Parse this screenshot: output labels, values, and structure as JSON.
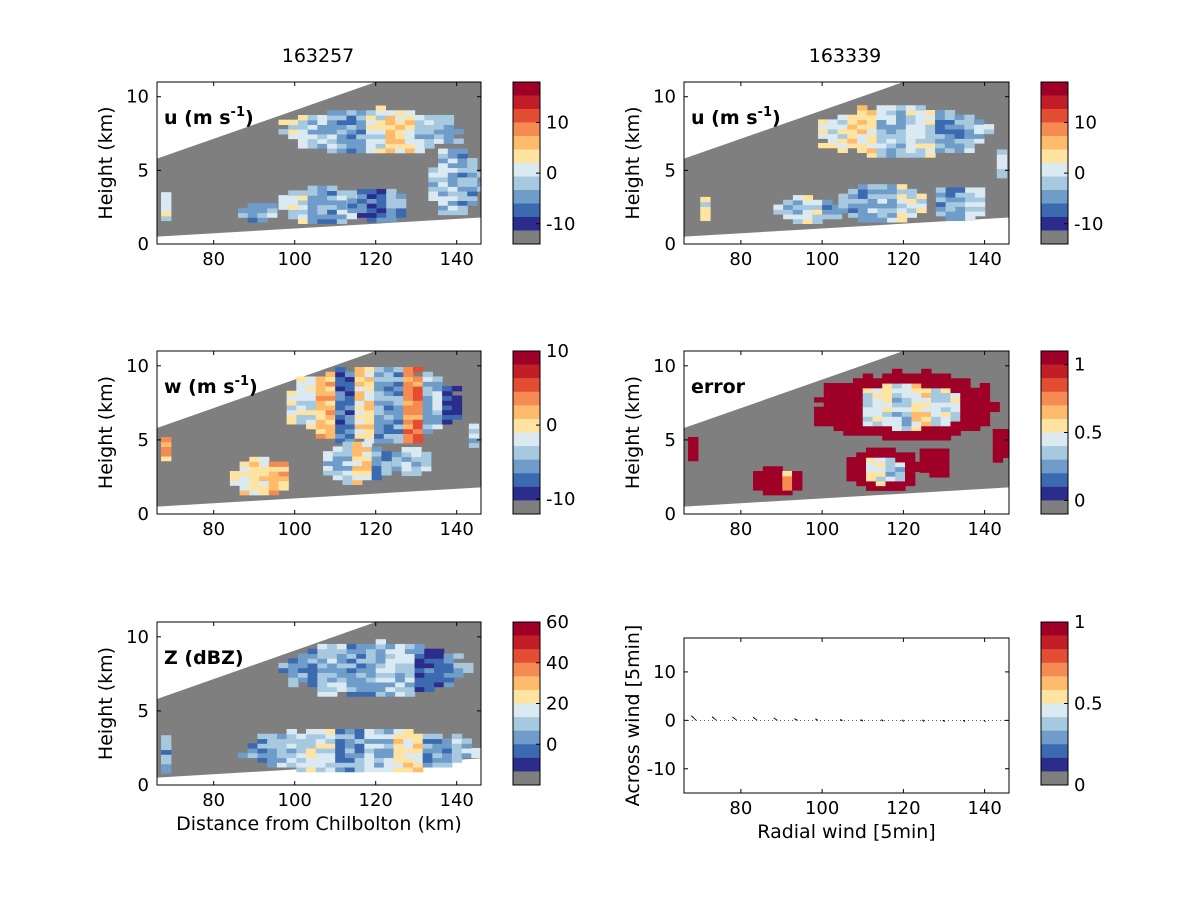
{
  "figure": {
    "column_titles": [
      "163257",
      "163339"
    ]
  },
  "chart_data": [
    {
      "type": "heatmap",
      "id": "u_left",
      "label": "u (m s",
      "label_sup": "-1",
      "label_tail": ")",
      "ylabel": "Height (km)",
      "xlabel": "",
      "xlim": [
        66,
        146
      ],
      "ylim": [
        0,
        11
      ],
      "xticks": [
        80,
        100,
        120,
        140
      ],
      "yticks": [
        0,
        5,
        10
      ],
      "colorbar": {
        "ticks": [
          {
            "v": 10,
            "label": "10"
          },
          {
            "v": 0,
            "label": "0"
          },
          {
            "v": -10,
            "label": "-10"
          }
        ],
        "range": [
          -14,
          18
        ]
      },
      "cloud_regions": [
        {
          "x": [
            96,
            141
          ],
          "y": [
            6.2,
            9.2
          ],
          "field": [
            4,
            3,
            2,
            4,
            5,
            3,
            2
          ]
        },
        {
          "x": [
            67,
            69
          ],
          "y": [
            1.6,
            3.4
          ],
          "field": [
            4
          ]
        },
        {
          "x": [
            86,
            96
          ],
          "y": [
            1.5,
            2.9
          ],
          "field": [
            2,
            3
          ]
        },
        {
          "x": [
            96,
            117
          ],
          "y": [
            1.4,
            4.0
          ],
          "field": [
            4,
            2,
            3
          ]
        },
        {
          "x": [
            113,
            128
          ],
          "y": [
            1.5,
            3.8
          ],
          "field": [
            1,
            2
          ]
        },
        {
          "x": [
            133,
            146
          ],
          "y": [
            2.0,
            6.5
          ],
          "field": [
            3,
            2
          ]
        }
      ]
    },
    {
      "type": "heatmap",
      "id": "u_right",
      "label": "u (m s",
      "label_sup": "-1",
      "label_tail": ")",
      "ylabel": "Height (km)",
      "xlabel": "",
      "xlim": [
        66,
        146
      ],
      "ylim": [
        0,
        11
      ],
      "xticks": [
        80,
        100,
        120,
        140
      ],
      "yticks": [
        0,
        5,
        10
      ],
      "colorbar": {
        "ticks": [
          {
            "v": 10,
            "label": "10"
          },
          {
            "v": 0,
            "label": "0"
          },
          {
            "v": -10,
            "label": "-10"
          }
        ],
        "range": [
          -14,
          18
        ]
      },
      "cloud_regions": [
        {
          "x": [
            99,
            141
          ],
          "y": [
            5.9,
            9.4
          ],
          "field": [
            4,
            5,
            3,
            4,
            2,
            3
          ]
        },
        {
          "x": [
            70,
            72
          ],
          "y": [
            1.6,
            3.4
          ],
          "field": [
            4
          ]
        },
        {
          "x": [
            88,
            104
          ],
          "y": [
            1.4,
            3.2
          ],
          "field": [
            3,
            4,
            2
          ]
        },
        {
          "x": [
            104,
            125
          ],
          "y": [
            1.5,
            4.1
          ],
          "field": [
            2,
            3,
            4
          ]
        },
        {
          "x": [
            128,
            140
          ],
          "y": [
            1.6,
            4.0
          ],
          "field": [
            2,
            3
          ]
        },
        {
          "x": [
            143,
            146
          ],
          "y": [
            4.5,
            6.5
          ],
          "field": [
            3
          ]
        }
      ]
    },
    {
      "type": "heatmap",
      "id": "w_left",
      "label": "w (m s",
      "label_sup": "-1",
      "label_tail": ")",
      "ylabel": "Height (km)",
      "xlabel": "",
      "xlim": [
        66,
        146
      ],
      "ylim": [
        0,
        11
      ],
      "xticks": [
        80,
        100,
        120,
        140
      ],
      "yticks": [
        0,
        5,
        10
      ],
      "colorbar": {
        "ticks": [
          {
            "v": 10,
            "label": "10"
          },
          {
            "v": 0,
            "label": "0"
          },
          {
            "v": -10,
            "label": "-10"
          }
        ],
        "range": [
          -12,
          10
        ]
      },
      "cloud_regions": [
        {
          "x": [
            98,
            141
          ],
          "y": [
            4.8,
            10.0
          ],
          "field": [
            4,
            6,
            1,
            5,
            2,
            7,
            3,
            0
          ]
        },
        {
          "x": [
            67,
            69
          ],
          "y": [
            3.6,
            5.2
          ],
          "field": [
            6
          ]
        },
        {
          "x": [
            84,
            100
          ],
          "y": [
            1.3,
            3.8
          ],
          "field": [
            5,
            6
          ]
        },
        {
          "x": [
            107,
            124
          ],
          "y": [
            2.0,
            4.9
          ],
          "field": [
            3,
            5,
            2
          ]
        },
        {
          "x": [
            124,
            133
          ],
          "y": [
            2.6,
            4.5
          ],
          "field": [
            3
          ]
        },
        {
          "x": [
            143,
            146
          ],
          "y": [
            4.5,
            6.0
          ],
          "field": [
            3
          ]
        }
      ]
    },
    {
      "type": "heatmap",
      "id": "error_right",
      "label": "error",
      "label_sup": "",
      "label_tail": "",
      "ylabel": "Height (km)",
      "xlabel": "",
      "xlim": [
        66,
        146
      ],
      "ylim": [
        0,
        11
      ],
      "xticks": [
        80,
        100,
        120,
        140
      ],
      "yticks": [
        0,
        5,
        10
      ],
      "colorbar": {
        "ticks": [
          {
            "v": 1,
            "label": "1"
          },
          {
            "v": 0.5,
            "label": "0.5"
          },
          {
            "v": 0,
            "label": "0"
          }
        ],
        "range": [
          -0.1,
          1.1
        ]
      },
      "cloud_regions": [
        {
          "x": [
            98,
            143
          ],
          "y": [
            5.0,
            9.5
          ],
          "field": [
            11,
            11,
            4,
            3,
            5,
            4,
            11,
            11
          ]
        },
        {
          "x": [
            67,
            70
          ],
          "y": [
            3.6,
            5.2
          ],
          "field": [
            11
          ]
        },
        {
          "x": [
            83,
            95
          ],
          "y": [
            1.3,
            3.2
          ],
          "field": [
            11,
            6
          ]
        },
        {
          "x": [
            106,
            124
          ],
          "y": [
            1.6,
            4.4
          ],
          "field": [
            11,
            4,
            3,
            11
          ]
        },
        {
          "x": [
            124,
            132
          ],
          "y": [
            2.5,
            4.6
          ],
          "field": [
            11
          ]
        },
        {
          "x": [
            142,
            146
          ],
          "y": [
            3.5,
            6.0
          ],
          "field": [
            11
          ]
        }
      ]
    },
    {
      "type": "heatmap",
      "id": "z_left",
      "label": "Z (dBZ)",
      "label_sup": "",
      "label_tail": "",
      "ylabel": "Height (km)",
      "xlabel": "Distance from Chilbolton (km)",
      "xlim": [
        66,
        146
      ],
      "ylim": [
        0,
        11
      ],
      "xticks": [
        80,
        100,
        120,
        140
      ],
      "yticks": [
        0,
        5,
        10
      ],
      "colorbar": {
        "ticks": [
          {
            "v": 60,
            "label": "60"
          },
          {
            "v": 40,
            "label": "40"
          },
          {
            "v": 20,
            "label": "20"
          },
          {
            "v": 0,
            "label": "0"
          }
        ],
        "range": [
          -20,
          60
        ]
      },
      "cloud_regions": [
        {
          "x": [
            96,
            143
          ],
          "y": [
            6.0,
            9.6
          ],
          "field": [
            2,
            3,
            2,
            3,
            1,
            2
          ]
        },
        {
          "x": [
            67,
            70
          ],
          "y": [
            0.8,
            3.5
          ],
          "field": [
            2,
            1
          ]
        },
        {
          "x": [
            86,
            146
          ],
          "y": [
            0.9,
            3.8
          ],
          "field": [
            2,
            3,
            4,
            2,
            3,
            5,
            2,
            3
          ]
        }
      ]
    },
    {
      "type": "scatter",
      "id": "wind_right",
      "label": "",
      "ylabel": "Across wind [5min]",
      "xlabel": "Radial wind [5min]",
      "xlim": [
        66,
        146
      ],
      "ylim": [
        -15,
        17
      ],
      "xticks": [
        80,
        100,
        120,
        140
      ],
      "yticks": [
        -10,
        0,
        10
      ],
      "colorbar": {
        "ticks": [
          {
            "v": 1,
            "label": "1"
          },
          {
            "v": 0.5,
            "label": "0.5"
          },
          {
            "v": 0,
            "label": "0"
          }
        ],
        "range": [
          0,
          1
        ]
      },
      "vectors": [
        {
          "x": 69,
          "dx": -1.6,
          "dy": 1.5
        },
        {
          "x": 74,
          "dx": -1.5,
          "dy": 1.2
        },
        {
          "x": 79,
          "dx": -1.4,
          "dy": 1.1
        },
        {
          "x": 84,
          "dx": -1.3,
          "dy": 1.0
        },
        {
          "x": 89,
          "dx": -1.2,
          "dy": 0.8
        },
        {
          "x": 94,
          "dx": -1.1,
          "dy": 0.6
        },
        {
          "x": 99,
          "dx": -0.9,
          "dy": 0.5
        },
        {
          "x": 105,
          "dx": -0.8,
          "dy": 0.3
        },
        {
          "x": 110,
          "dx": -0.7,
          "dy": 0.2
        },
        {
          "x": 115,
          "dx": -0.6,
          "dy": 0.2
        },
        {
          "x": 120,
          "dx": -0.5,
          "dy": 0.1
        },
        {
          "x": 125,
          "dx": -0.5,
          "dy": 0.1
        },
        {
          "x": 130,
          "dx": -0.4,
          "dy": 0.0
        },
        {
          "x": 135,
          "dx": -0.4,
          "dy": 0.0
        },
        {
          "x": 140,
          "dx": -0.3,
          "dy": 0.0
        }
      ]
    }
  ],
  "colors": {
    "palette": [
      "#2b2c8c",
      "#3b6ab0",
      "#6f9cc9",
      "#a7c9e0",
      "#dbeaf2",
      "#fee4a0",
      "#fdbb6b",
      "#f58b52",
      "#e34d34",
      "#c21e27",
      "#9e0027"
    ],
    "background_masked": "#7f7f7f",
    "error_high": "#b0001e"
  }
}
